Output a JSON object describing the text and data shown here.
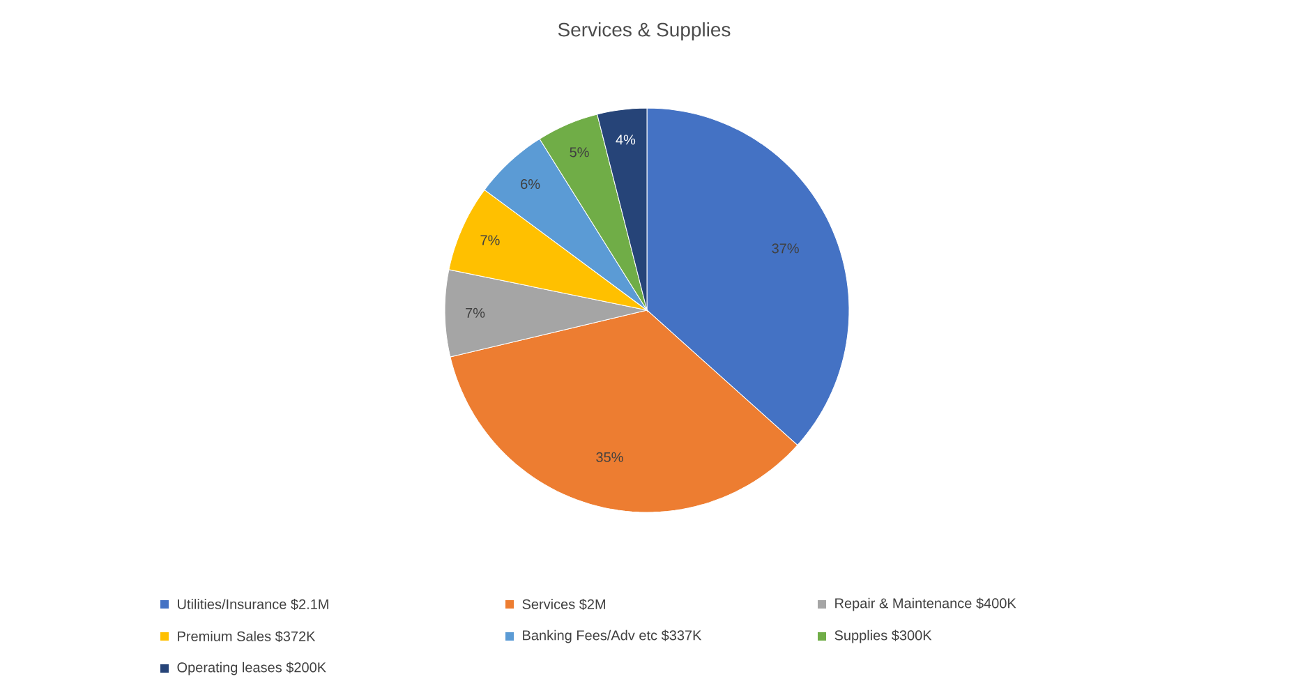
{
  "chart_data": {
    "type": "pie",
    "title": "Services & Supplies",
    "categories": [
      "Utilities/Insurance $2.1M",
      "Services $2M",
      "Repair & Maintenance $400K",
      "Premium Sales $372K",
      "Banking Fees/Adv etc $337K",
      "Supplies $300K",
      "Operating leases $200K"
    ],
    "values": [
      37,
      35,
      7,
      7,
      6,
      5,
      4
    ],
    "colors": [
      "#4472c4",
      "#ed7d31",
      "#a5a5a5",
      "#ffc000",
      "#5b9bd5",
      "#70ad47",
      "#264478"
    ],
    "value_labels": [
      "37%",
      "35%",
      "7%",
      "7%",
      "6%",
      "5%",
      "4%"
    ],
    "legend": "bottom"
  }
}
